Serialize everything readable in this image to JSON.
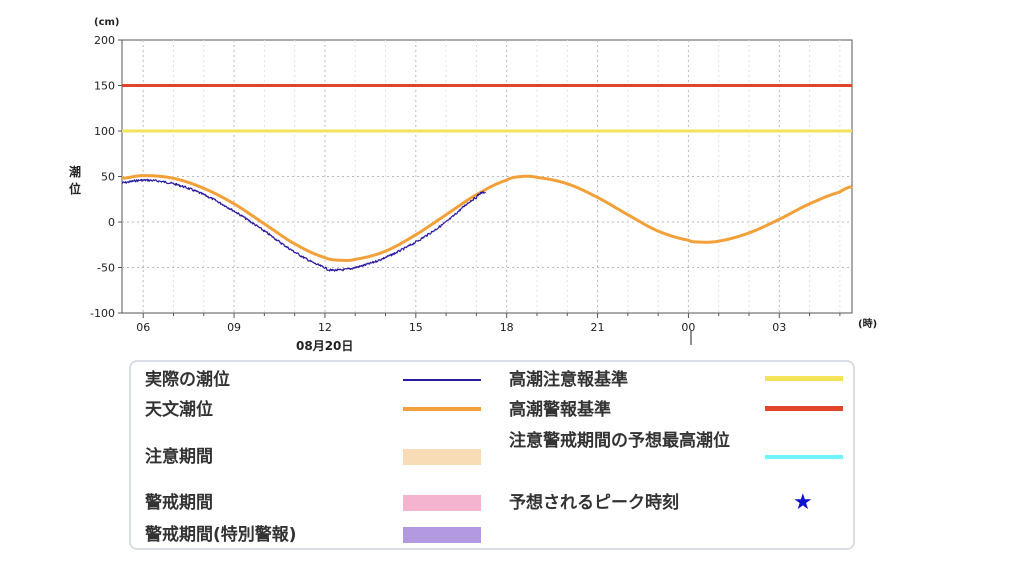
{
  "chart_data": {
    "type": "line",
    "y_unit_label": "(cm)",
    "x_unit_label": "(時)",
    "ylabel": "潮位",
    "date_label": "08月20日",
    "ylim": [
      -100,
      200
    ],
    "y_ticks": [
      200,
      150,
      100,
      50,
      0,
      -50,
      -100
    ],
    "x_range_hours": [
      5.3,
      29.4
    ],
    "x_ticks": [
      {
        "h": 6,
        "label": "06"
      },
      {
        "h": 9,
        "label": "09"
      },
      {
        "h": 12,
        "label": "12"
      },
      {
        "h": 15,
        "label": "15"
      },
      {
        "h": 18,
        "label": "18"
      },
      {
        "h": 21,
        "label": "21"
      },
      {
        "h": 24,
        "label": "00"
      },
      {
        "h": 27,
        "label": "03"
      }
    ],
    "grid": true,
    "series": [
      {
        "name": "高潮警報基準",
        "kind": "hline",
        "value": 150,
        "color": "#e0442a"
      },
      {
        "name": "高潮注意報基準",
        "kind": "hline",
        "value": 100,
        "color": "#f2e35a"
      },
      {
        "name": "天文潮位",
        "kind": "curve",
        "color": "#f2a03a",
        "points": [
          [
            5.3,
            48
          ],
          [
            6.0,
            51
          ],
          [
            7.0,
            48
          ],
          [
            8.0,
            37
          ],
          [
            9.0,
            20
          ],
          [
            10.0,
            -2
          ],
          [
            11.0,
            -24
          ],
          [
            12.0,
            -39
          ],
          [
            12.5,
            -42
          ],
          [
            13.0,
            -41
          ],
          [
            14.0,
            -32
          ],
          [
            15.0,
            -14
          ],
          [
            16.0,
            8
          ],
          [
            17.0,
            30
          ],
          [
            18.0,
            46
          ],
          [
            18.5,
            50
          ],
          [
            19.0,
            49
          ],
          [
            20.0,
            42
          ],
          [
            21.0,
            27
          ],
          [
            22.0,
            8
          ],
          [
            23.0,
            -10
          ],
          [
            24.0,
            -20
          ],
          [
            24.3,
            -22
          ],
          [
            25.0,
            -21
          ],
          [
            26.0,
            -12
          ],
          [
            27.0,
            3
          ],
          [
            28.0,
            20
          ],
          [
            29.0,
            33
          ],
          [
            29.4,
            39
          ]
        ]
      },
      {
        "name": "実際の潮位",
        "kind": "curve",
        "color": "#2a1aa0",
        "jitter": true,
        "points": [
          [
            5.3,
            43
          ],
          [
            6.0,
            46
          ],
          [
            7.0,
            42
          ],
          [
            8.0,
            30
          ],
          [
            9.0,
            12
          ],
          [
            10.0,
            -10
          ],
          [
            11.0,
            -33
          ],
          [
            12.0,
            -50
          ],
          [
            12.3,
            -53
          ],
          [
            13.0,
            -50
          ],
          [
            14.0,
            -39
          ],
          [
            15.0,
            -22
          ],
          [
            16.0,
            0
          ],
          [
            17.0,
            27
          ],
          [
            17.3,
            33
          ]
        ]
      }
    ]
  },
  "legend": {
    "actual": "実際の潮位",
    "astro": "天文潮位",
    "caution_period": "注意期間",
    "warning_period": "警戒期間",
    "warning_special": "警戒期間(特別警報)",
    "storm_caution_std": "高潮注意報基準",
    "storm_warning_std": "高潮警報基準",
    "peak_forecast": "注意警戒期間の予想最高潮位",
    "peak_time": "予想されるピーク時刻",
    "star_symbol": "★"
  },
  "colors": {
    "actual": "#2a1aa0",
    "astro": "#f2a03a",
    "caution": "#f7dcb5",
    "warning": "#f4b3cf",
    "warning_special": "#b299e0",
    "storm_caution": "#f2e35a",
    "storm_warning": "#e0442a",
    "peak": "#6ef4ff",
    "star": "#1010d0"
  }
}
